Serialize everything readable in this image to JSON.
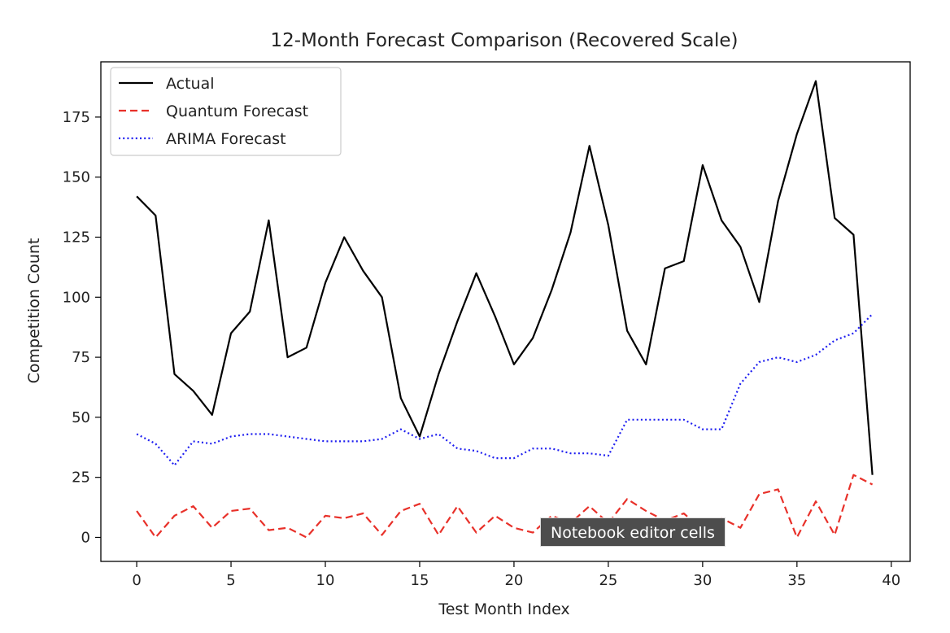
{
  "chart_data": {
    "type": "line",
    "title": "12-Month Forecast Comparison (Recovered Scale)",
    "xlabel": "Test Month Index",
    "ylabel": "Competition Count",
    "xlim": [
      -1.9,
      41
    ],
    "ylim": [
      -10,
      198
    ],
    "xticks": [
      0,
      5,
      10,
      15,
      20,
      25,
      30,
      35,
      40
    ],
    "yticks": [
      0,
      25,
      50,
      75,
      100,
      125,
      150,
      175
    ],
    "grid": false,
    "legend_position": "top-left",
    "x": [
      0,
      1,
      2,
      3,
      4,
      5,
      6,
      7,
      8,
      9,
      10,
      11,
      12,
      13,
      14,
      15,
      16,
      17,
      18,
      19,
      20,
      21,
      22,
      23,
      24,
      25,
      26,
      27,
      28,
      29,
      30,
      31,
      32,
      33,
      34,
      35,
      36,
      37,
      38,
      39
    ],
    "series": [
      {
        "name": "Actual",
        "color": "#000000",
        "style": "solid",
        "values": [
          142,
          134,
          68,
          61,
          51,
          85,
          94,
          132,
          75,
          79,
          106,
          125,
          111,
          100,
          58,
          42,
          68,
          90,
          110,
          92,
          72,
          83,
          103,
          127,
          163,
          130,
          86,
          72,
          112,
          115,
          155,
          132,
          121,
          98,
          140,
          168,
          190,
          133,
          126,
          26
        ]
      },
      {
        "name": "Quantum Forecast",
        "color": "#e8312a",
        "style": "dashed",
        "values": [
          11,
          0,
          9,
          13,
          4,
          11,
          12,
          3,
          4,
          0,
          9,
          8,
          10,
          1,
          11,
          14,
          1,
          13,
          2,
          9,
          4,
          2,
          9,
          6,
          13,
          6,
          16,
          11,
          7,
          10,
          3,
          8,
          4,
          18,
          20,
          0,
          15,
          1,
          26,
          22
        ]
      },
      {
        "name": "ARIMA Forecast",
        "color": "#1f1ff0",
        "style": "dotted",
        "values": [
          43,
          39,
          30,
          40,
          39,
          42,
          43,
          43,
          42,
          41,
          40,
          40,
          40,
          41,
          45,
          41,
          43,
          37,
          36,
          33,
          33,
          37,
          37,
          35,
          35,
          34,
          49,
          49,
          49,
          49,
          45,
          45,
          64,
          73,
          75,
          73,
          76,
          82,
          85,
          93
        ]
      }
    ]
  },
  "tooltip": {
    "text": "Notebook editor cells"
  }
}
